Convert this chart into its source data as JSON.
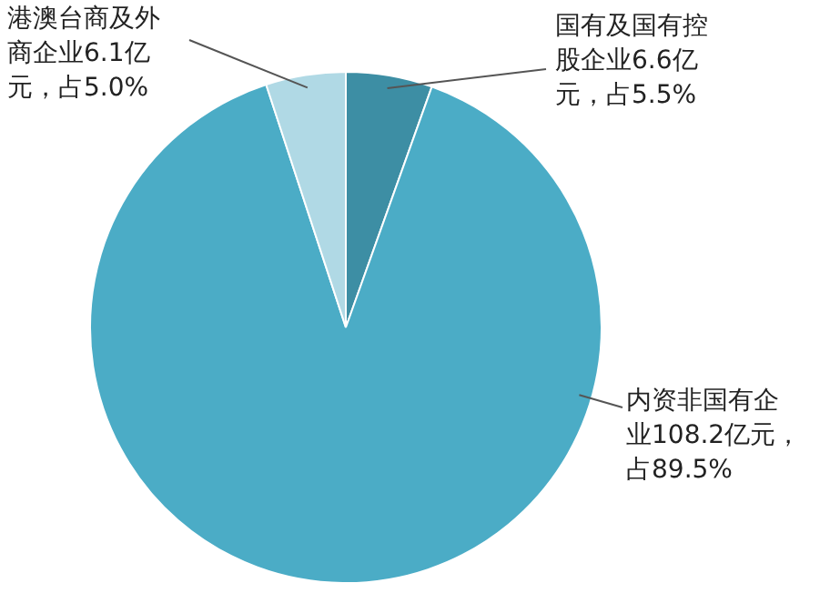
{
  "chart_data": {
    "type": "pie",
    "categories": [
      "国有及国有控股企业",
      "内资非国有企业",
      "港澳台商及外商企业"
    ],
    "values": [
      6.6,
      108.2,
      6.1
    ],
    "value_labels": [
      "6.6亿元，占5.5%",
      "108.2亿元，占89.5%",
      "6.1亿元，占5.0%"
    ],
    "colors": [
      "#3d8ea4",
      "#4bacc6",
      "#b0d9e5"
    ],
    "legend": false
  }
}
